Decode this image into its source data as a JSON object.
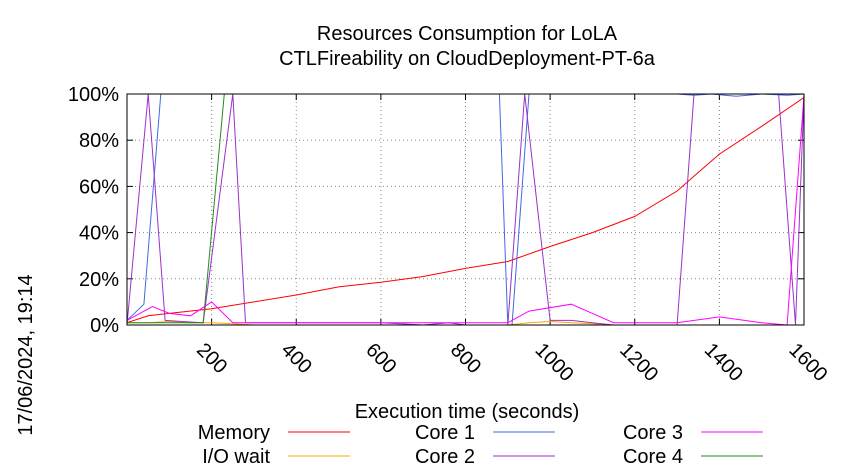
{
  "chart_data": {
    "type": "line",
    "title": "Resources Consumption for LoLA",
    "subtitle": "CTLFireability on CloudDeployment-PT-6a",
    "xlabel": "Execution time (seconds)",
    "ylabel": "",
    "timestamp": "17/06/2024, 19:14",
    "xlim": [
      0,
      1600
    ],
    "ylim": [
      0,
      100
    ],
    "x_ticks": [
      200,
      400,
      600,
      800,
      1000,
      1200,
      1400,
      1600
    ],
    "y_ticks": [
      0,
      20,
      40,
      60,
      80,
      100
    ],
    "y_tick_labels": [
      "0%",
      "20%",
      "40%",
      "60%",
      "80%",
      "100%"
    ],
    "grid": true,
    "legend_position": "bottom",
    "series": [
      {
        "name": "Memory",
        "color": "#ff0000",
        "points": [
          [
            0,
            1
          ],
          [
            50,
            4
          ],
          [
            100,
            5
          ],
          [
            200,
            7
          ],
          [
            300,
            10
          ],
          [
            400,
            13
          ],
          [
            500,
            16.5
          ],
          [
            600,
            18.5
          ],
          [
            700,
            21
          ],
          [
            800,
            24.5
          ],
          [
            900,
            27.5
          ],
          [
            1000,
            34
          ],
          [
            1100,
            40
          ],
          [
            1200,
            47
          ],
          [
            1300,
            58
          ],
          [
            1350,
            66
          ],
          [
            1400,
            74
          ],
          [
            1500,
            86
          ],
          [
            1600,
            98.5
          ]
        ]
      },
      {
        "name": "I/O wait",
        "color": "#ffa500",
        "points": [
          [
            0,
            1
          ],
          [
            50,
            1
          ],
          [
            100,
            1.5
          ],
          [
            150,
            1
          ],
          [
            200,
            1
          ],
          [
            250,
            0.5
          ],
          [
            300,
            0
          ],
          [
            900,
            0
          ],
          [
            950,
            1
          ],
          [
            1000,
            1.5
          ],
          [
            1050,
            1
          ],
          [
            1100,
            0.5
          ],
          [
            1150,
            0
          ],
          [
            1600,
            0
          ]
        ]
      },
      {
        "name": "Core 1",
        "color": "#4169e1",
        "points": [
          [
            0,
            2
          ],
          [
            40,
            9
          ],
          [
            80,
            100
          ],
          [
            100,
            100
          ],
          [
            280,
            100
          ],
          [
            800,
            100
          ],
          [
            880,
            100
          ],
          [
            900,
            0
          ],
          [
            910,
            0
          ],
          [
            950,
            100
          ],
          [
            1300,
            100
          ],
          [
            1340,
            99.5
          ],
          [
            1380,
            100
          ],
          [
            1440,
            99
          ],
          [
            1500,
            100
          ],
          [
            1560,
            99.5
          ],
          [
            1600,
            100
          ]
        ]
      },
      {
        "name": "Core 2",
        "color": "#9932cc",
        "points": [
          [
            0,
            0
          ],
          [
            50,
            100
          ],
          [
            90,
            2
          ],
          [
            130,
            1.5
          ],
          [
            180,
            1
          ],
          [
            250,
            100
          ],
          [
            280,
            1
          ],
          [
            500,
            1
          ],
          [
            600,
            1
          ],
          [
            700,
            0
          ],
          [
            760,
            1
          ],
          [
            800,
            0
          ],
          [
            900,
            0
          ],
          [
            940,
            100
          ],
          [
            1000,
            2
          ],
          [
            1050,
            2
          ],
          [
            1100,
            1
          ],
          [
            1150,
            0
          ],
          [
            1300,
            0
          ],
          [
            1340,
            100
          ],
          [
            1400,
            100
          ],
          [
            1500,
            100
          ],
          [
            1540,
            100
          ],
          [
            1580,
            0
          ],
          [
            1600,
            100
          ]
        ]
      },
      {
        "name": "Core 3",
        "color": "#ff00ff",
        "points": [
          [
            0,
            2
          ],
          [
            60,
            8
          ],
          [
            100,
            5
          ],
          [
            150,
            4
          ],
          [
            200,
            10
          ],
          [
            250,
            1
          ],
          [
            300,
            1
          ],
          [
            900,
            1
          ],
          [
            950,
            6
          ],
          [
            1050,
            9
          ],
          [
            1100,
            5
          ],
          [
            1150,
            1
          ],
          [
            1300,
            1
          ],
          [
            1400,
            3.5
          ],
          [
            1500,
            1
          ],
          [
            1560,
            0
          ],
          [
            1600,
            99.5
          ]
        ]
      },
      {
        "name": "Core 4",
        "color": "#228b22",
        "points": [
          [
            0,
            1
          ],
          [
            180,
            1
          ],
          [
            230,
            100
          ],
          [
            300,
            100
          ],
          [
            1600,
            100
          ]
        ]
      }
    ]
  }
}
